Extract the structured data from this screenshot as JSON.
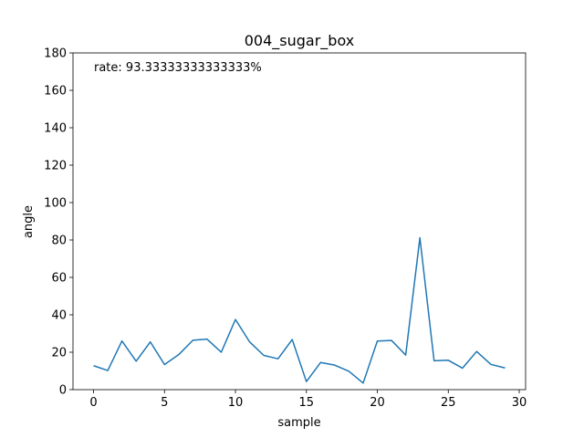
{
  "chart_data": {
    "type": "line",
    "title": "004_sugar_box",
    "xlabel": "sample",
    "ylabel": "angle",
    "xlim": [
      -1.45,
      30.45
    ],
    "ylim": [
      0,
      180
    ],
    "xticks": [
      0,
      5,
      10,
      15,
      20,
      25,
      30
    ],
    "yticks": [
      0,
      20,
      40,
      60,
      80,
      100,
      120,
      140,
      160,
      180
    ],
    "grid": false,
    "annotation": "rate: 93.33333333333333%",
    "series": [
      {
        "color": "#1f77b4",
        "x": [
          0,
          1,
          2,
          3,
          4,
          5,
          6,
          7,
          8,
          9,
          10,
          11,
          12,
          13,
          14,
          15,
          16,
          17,
          18,
          19,
          20,
          21,
          22,
          23,
          24,
          25,
          26,
          27,
          28,
          29
        ],
        "values": [
          12.8,
          10.2,
          26.0,
          15.2,
          25.5,
          13.4,
          18.7,
          26.4,
          27.0,
          20.0,
          37.5,
          25.5,
          18.3,
          16.5,
          26.8,
          4.3,
          14.5,
          13.1,
          9.8,
          3.5,
          26.0,
          26.3,
          18.5,
          81.2,
          15.4,
          15.7,
          11.5,
          20.4,
          13.5,
          11.6
        ]
      }
    ]
  }
}
